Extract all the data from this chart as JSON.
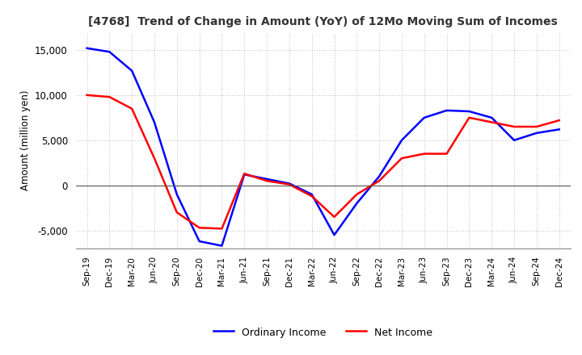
{
  "title": "[4768]  Trend of Change in Amount (YoY) of 12Mo Moving Sum of Incomes",
  "ylabel": "Amount (million yen)",
  "x_labels": [
    "Sep-19",
    "Dec-19",
    "Mar-20",
    "Jun-20",
    "Sep-20",
    "Dec-20",
    "Mar-21",
    "Jun-21",
    "Sep-21",
    "Dec-21",
    "Mar-22",
    "Jun-22",
    "Sep-22",
    "Dec-22",
    "Mar-23",
    "Jun-23",
    "Sep-23",
    "Dec-23",
    "Mar-24",
    "Jun-24",
    "Sep-24",
    "Dec-24"
  ],
  "ordinary_income": [
    15200,
    14800,
    12700,
    7000,
    -1000,
    -6200,
    -6700,
    1200,
    700,
    200,
    -1000,
    -5500,
    -2000,
    1000,
    5000,
    7500,
    8300,
    8200,
    7500,
    5000,
    5800,
    6200
  ],
  "net_income": [
    10000,
    9800,
    8500,
    3000,
    -3000,
    -4700,
    -4800,
    1300,
    500,
    100,
    -1200,
    -3500,
    -1000,
    500,
    3000,
    3500,
    3500,
    7500,
    7000,
    6500,
    6500,
    7200
  ],
  "ordinary_color": "#0000ff",
  "net_color": "#ff0000",
  "legend_labels": [
    "Ordinary Income",
    "Net Income"
  ],
  "ylim": [
    -7000,
    17000
  ],
  "yticks": [
    -5000,
    0,
    5000,
    10000,
    15000
  ],
  "background_color": "#ffffff",
  "grid_color": "#bbbbbb"
}
